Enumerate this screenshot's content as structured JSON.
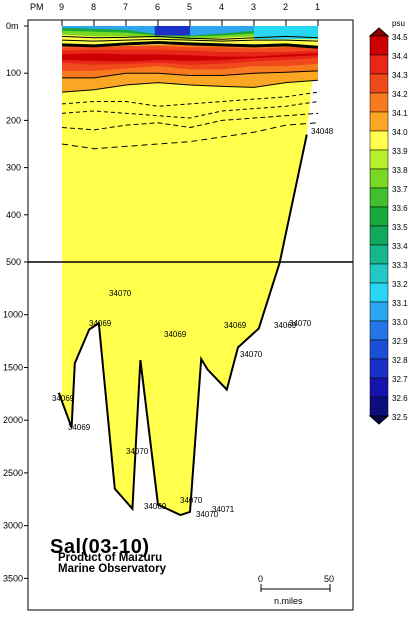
{
  "chart_data": {
    "type": "heatmap",
    "title": "Sal(03-10)",
    "credit": [
      "Product of Maizuru",
      "Marine Observatory"
    ],
    "top_label": "PM",
    "stations": [
      "9",
      "8",
      "7",
      "6",
      "5",
      "4",
      "3",
      "2",
      "1"
    ],
    "y_ticks_upper": [
      "0m",
      "100",
      "200",
      "300",
      "400",
      "500"
    ],
    "y_ticks_lower": [
      "1000",
      "1500",
      "2000",
      "2500",
      "3000",
      "3500"
    ],
    "ylim_upper": [
      0,
      500
    ],
    "ylim_lower": [
      500,
      3800
    ],
    "scale_bar": {
      "start": "0",
      "end": "50",
      "unit": "n.miles"
    },
    "colorbar": {
      "unit": "psu",
      "labels": [
        "34.5",
        "34.4",
        "34.3",
        "34.2",
        "34.1",
        "34.0",
        "33.9",
        "33.8",
        "33.7",
        "33.6",
        "33.5",
        "33.4",
        "33.3",
        "33.2",
        "33.1",
        "33.0",
        "32.9",
        "32.8",
        "32.7",
        "32.6",
        "32.5"
      ],
      "colors": [
        "#8b0000",
        "#cc0000",
        "#e8261a",
        "#f04a1c",
        "#f77a1e",
        "#fba724",
        "#ffff4c",
        "#b7ef2a",
        "#79d824",
        "#3fc02c",
        "#18a83c",
        "#12a85e",
        "#16b78e",
        "#22c8c4",
        "#27d6f0",
        "#2ba6ef",
        "#2476e6",
        "#1c4fd8",
        "#1a30c7",
        "#1515ad",
        "#0d0d7c",
        "#05054a"
      ]
    },
    "value_labels": [
      "34048",
      "34070",
      "34069",
      "34070",
      "34069",
      "34069",
      "34069",
      "34070",
      "34069",
      "34069",
      "34070",
      "34069",
      "34070",
      "34070",
      "34071"
    ],
    "bottom_profile": {
      "x_stations": [
        9.1,
        8.7,
        8.6,
        8.15,
        7.85,
        7.35,
        6.8,
        6.55,
        6.0,
        5.3,
        5.0,
        4.65,
        4.45,
        3.85,
        3.5,
        2.85,
        2.2,
        1.35
      ],
      "depth": [
        1740,
        2070,
        1460,
        1140,
        1080,
        2650,
        2840,
        1430,
        2800,
        2900,
        2870,
        1420,
        1520,
        1710,
        1310,
        1130,
        510,
        230
      ]
    }
  }
}
